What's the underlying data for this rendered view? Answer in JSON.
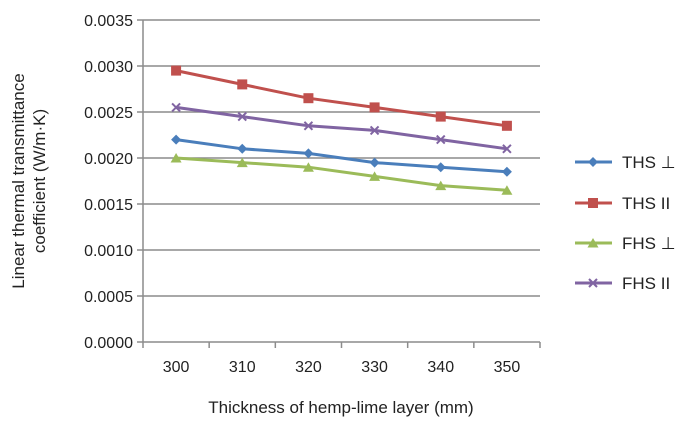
{
  "chart_data": {
    "type": "line",
    "title": "",
    "xlabel": "Thickness of hemp-lime layer (mm)",
    "ylabel": "Linear thermal transmittance coefficient (W/m·K)",
    "ylabel_lines": [
      "Linear thermal transmittance",
      "coefficient (W/m·K)"
    ],
    "categories": [
      "300",
      "310",
      "320",
      "330",
      "340",
      "350"
    ],
    "ylim": [
      0,
      0.0035
    ],
    "yticks": [
      "0.0000",
      "0.0005",
      "0.0010",
      "0.0015",
      "0.0020",
      "0.0025",
      "0.0030",
      "0.0035"
    ],
    "grid": true,
    "legend_position": "right",
    "series": [
      {
        "name": "THS ⊥",
        "color": "#4a7ebb",
        "marker": "diamond",
        "values": [
          0.0022,
          0.0021,
          0.00205,
          0.00195,
          0.0019,
          0.00185
        ]
      },
      {
        "name": "THS II",
        "color": "#c0504d",
        "marker": "square",
        "values": [
          0.00295,
          0.0028,
          0.00265,
          0.00255,
          0.00245,
          0.00235
        ]
      },
      {
        "name": "FHS ⊥",
        "color": "#9bbb59",
        "marker": "triangle",
        "values": [
          0.002,
          0.00195,
          0.0019,
          0.0018,
          0.0017,
          0.00165
        ]
      },
      {
        "name": "FHS II",
        "color": "#8064a2",
        "marker": "x",
        "values": [
          0.00255,
          0.00245,
          0.00235,
          0.0023,
          0.0022,
          0.0021
        ]
      }
    ]
  }
}
